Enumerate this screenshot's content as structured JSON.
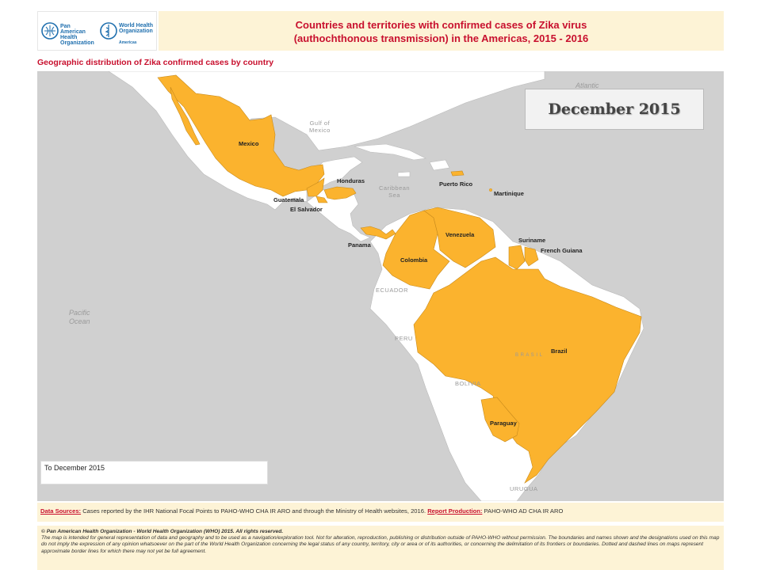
{
  "header": {
    "paho_name": "Pan American Health Organization",
    "who_name": "World Health Organization",
    "who_region": "Americas",
    "title_line1": "Countries and territories with confirmed cases of Zika virus",
    "title_line2": "(authochthonous transmission) in the Americas, 2015 - 2016"
  },
  "subheading": "Geographic distribution of Zika confirmed cases by country",
  "date_banner": "December 2015",
  "legend_text": "To December 2015",
  "colors": {
    "affected": "#fbb32e",
    "land": "#ffffff",
    "water": "#d0d0d0",
    "accent": "#c8102e"
  },
  "countries_confirmed": [
    {
      "name": "Mexico"
    },
    {
      "name": "Honduras"
    },
    {
      "name": "Guatemala"
    },
    {
      "name": "El Salvador"
    },
    {
      "name": "Puerto Rico"
    },
    {
      "name": "Martinique"
    },
    {
      "name": "Panama"
    },
    {
      "name": "Colombia"
    },
    {
      "name": "Venezuela"
    },
    {
      "name": "Suriname"
    },
    {
      "name": "French Guiana"
    },
    {
      "name": "Brazil"
    },
    {
      "name": "Paraguay"
    }
  ],
  "geo_labels": {
    "gulf_line1": "Gulf of",
    "gulf_line2": "Mexico",
    "carib_line1": "Caribbean",
    "carib_line2": "Sea",
    "atlantic": "Atlantic",
    "pacific_line1": "Pacific",
    "pacific_line2": "Ocean",
    "ecuador": "ECUADOR",
    "peru": "PERU",
    "bolivia": "BOLIVIA",
    "uruguay": "URUGUA",
    "brasil": "B R A S I L"
  },
  "sources": {
    "label": "Data Sources:",
    "text": " Cases reported by the IHR National Focal Points to PAHO-WHO CHA IR ARO and through the Ministry of Health websites, 2016. ",
    "report_label": "Report Production:",
    "report_text": " PAHO-WHO AD CHA IR ARO"
  },
  "footer": {
    "copyright": "© Pan American Health Organization - World Health Organization (WHO) 2015. All rights reserved.",
    "disclaimer": "The map is intended for general representation of data and geography and to be used as a navigation/exploration tool. Not for alteration, reproduction, publishing or distribution outside of PAHO-WHO without permission. The boundaries and names shown and the designations used on this map do not imply the expression of any opinion whatsoever on the part of the World Health Organization concerning the legal status of any country, territory, city or area or of its authorities, or concerning the delimitation of its frontiers or boundaries. Dotted and dashed lines on maps represent approximate border lines for which there may not yet be full agreement."
  }
}
